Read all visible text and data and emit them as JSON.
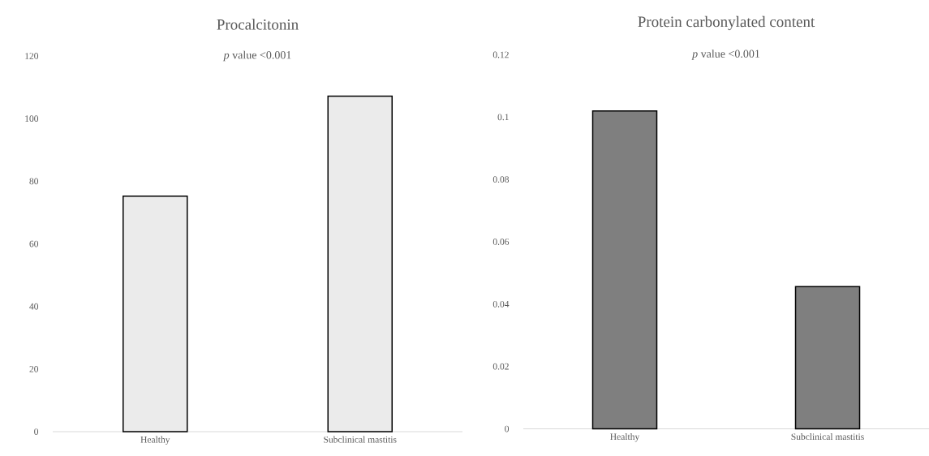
{
  "chart_data": [
    {
      "type": "bar",
      "title": "Procalcitonin",
      "subtitle": "*p* value <0.001",
      "categories": [
        "Healthy",
        "Subclinical mastitis"
      ],
      "values": [
        75.2,
        107.2
      ],
      "color": "#ebebeb",
      "ylim": [
        0,
        120
      ],
      "yticks": [
        0,
        20,
        40,
        60,
        80,
        100,
        120
      ],
      "grid": false
    },
    {
      "type": "bar",
      "title": "Protein carbonylated content",
      "subtitle": "*p* value <0.001",
      "categories": [
        "Healthy",
        "Subclinical mastitis"
      ],
      "values": [
        0.102,
        0.0456
      ],
      "color": "#7f7f7f",
      "ylim": [
        0,
        0.12
      ],
      "yticks": [
        0,
        0.02,
        0.04,
        0.06,
        0.08,
        0.1,
        0.12
      ],
      "grid": false
    }
  ]
}
